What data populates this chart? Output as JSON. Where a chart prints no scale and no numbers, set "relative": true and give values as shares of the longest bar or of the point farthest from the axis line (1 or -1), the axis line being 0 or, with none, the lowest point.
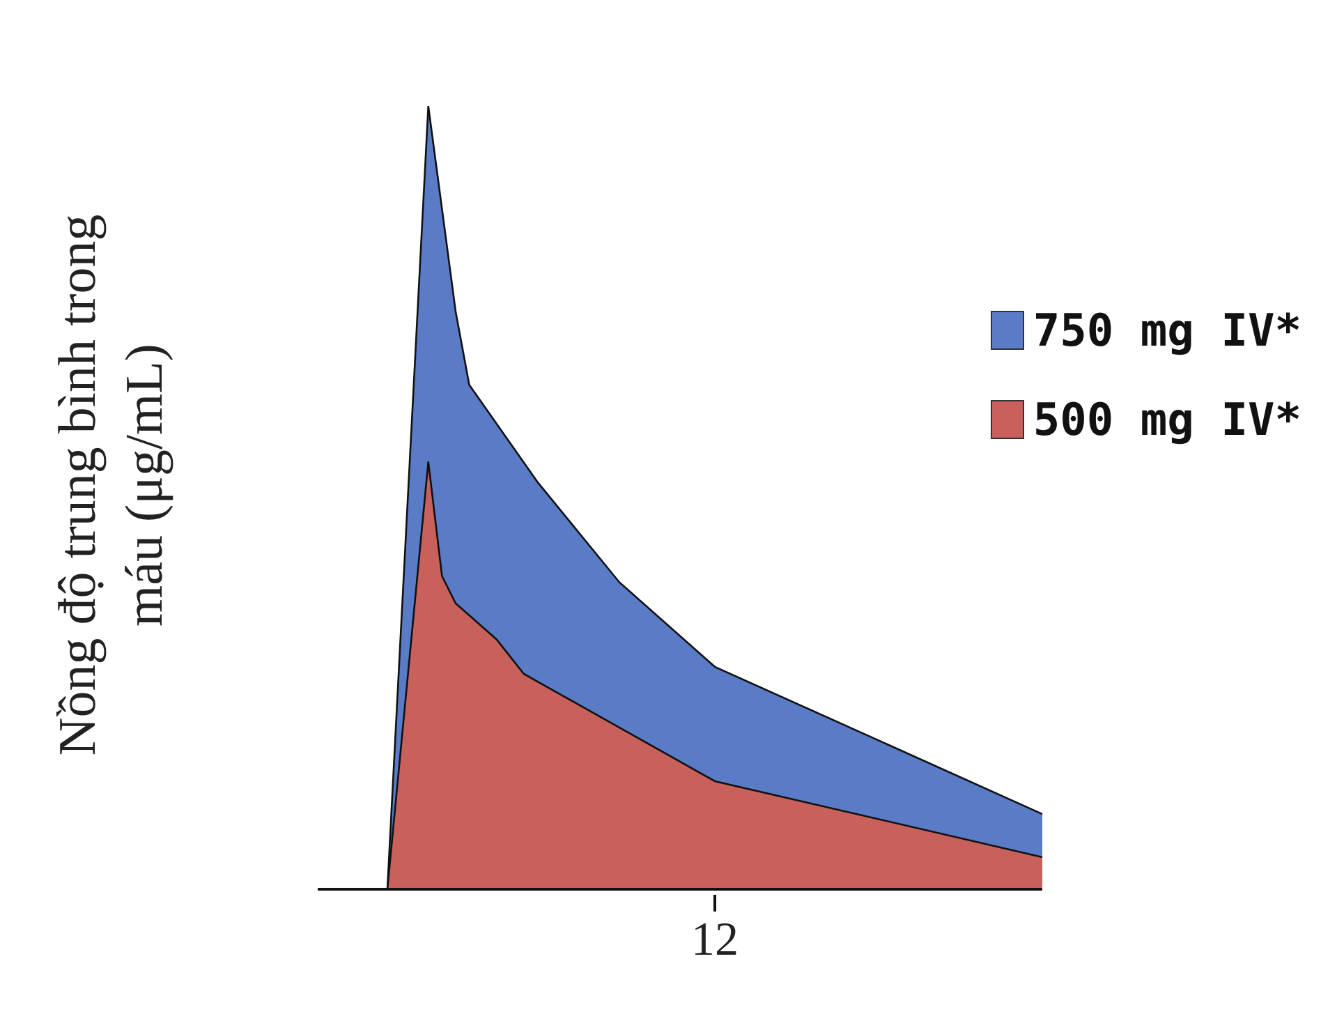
{
  "chart_data": {
    "type": "area",
    "ylabel": "Nồng độ trung bình trong máu (μg/mL)",
    "relative": true,
    "categories": [
      null,
      null,
      null,
      null,
      null,
      null,
      null,
      null,
      null,
      null,
      null,
      null,
      null,
      null,
      null,
      null,
      null,
      null,
      null,
      null,
      null,
      null,
      null,
      null,
      null,
      null,
      null,
      null,
      null,
      null,
      null,
      null,
      null,
      null,
      null,
      null,
      null,
      null,
      null,
      null,
      null,
      null,
      null,
      null,
      null,
      null,
      null,
      null,
      null
    ],
    "annotations": [
      "12"
    ],
    "legend": "right",
    "series": [
      {
        "name": "750 mg IV*",
        "color": "#5a7cc6",
        "values": [
          0,
          null,
          null,
          1,
          null,
          0.738,
          0.644,
          null,
          null,
          null,
          null,
          0.52,
          null,
          null,
          null,
          null,
          null,
          0.392,
          null,
          null,
          null,
          null,
          null,
          null,
          0.284,
          null,
          null,
          null,
          null,
          null,
          null,
          null,
          null,
          null,
          null,
          null,
          null,
          null,
          null,
          null,
          null,
          null,
          null,
          null,
          null,
          null,
          null,
          null,
          0.096
        ]
      },
      {
        "name": "500 mg IV*",
        "color": "#c8605c",
        "values": [
          0,
          null,
          null,
          0.546,
          0.4,
          0.365,
          null,
          null,
          0.319,
          null,
          0.275,
          null,
          null,
          null,
          null,
          null,
          null,
          null,
          null,
          null,
          null,
          null,
          null,
          null,
          0.138,
          null,
          null,
          null,
          null,
          null,
          null,
          null,
          null,
          null,
          null,
          null,
          null,
          null,
          null,
          null,
          null,
          null,
          null,
          null,
          null,
          null,
          null,
          null,
          0.041
        ]
      }
    ]
  }
}
